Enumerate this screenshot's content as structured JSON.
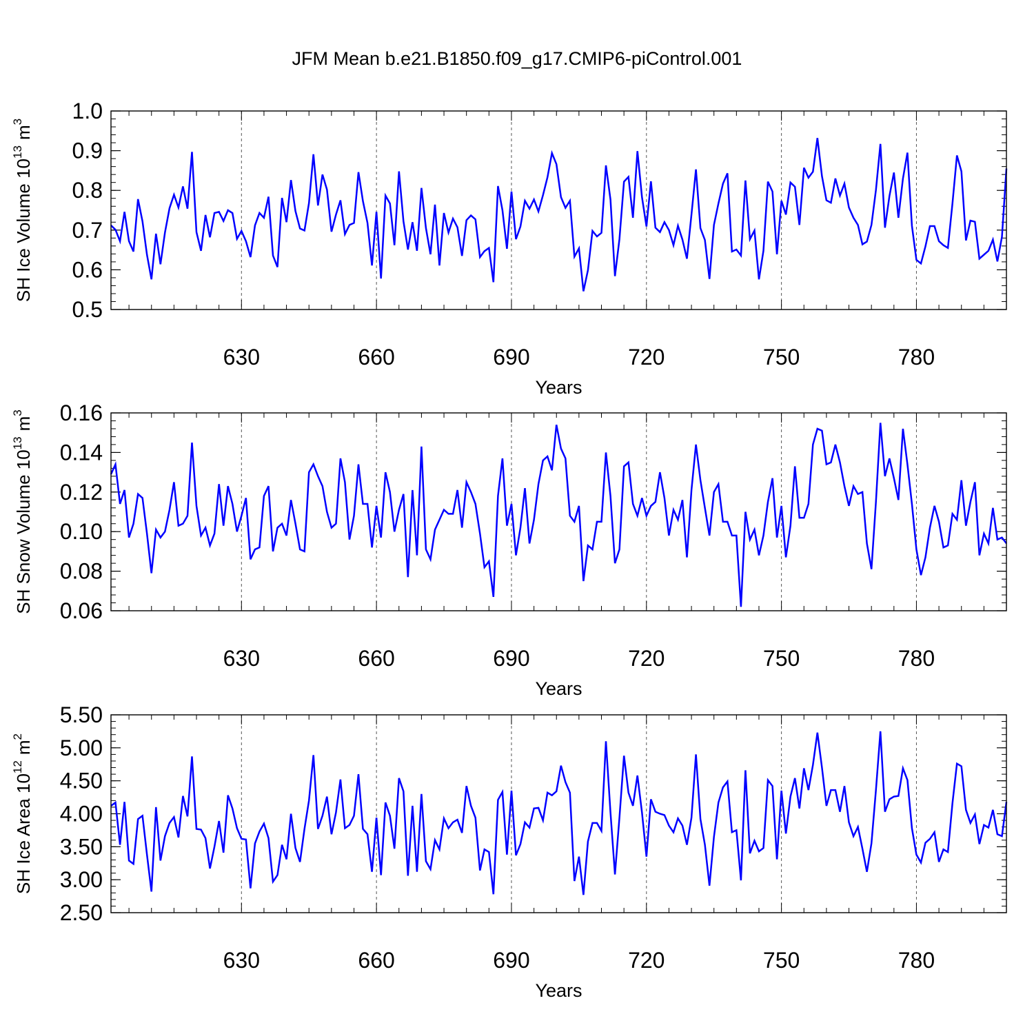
{
  "title": "JFM Mean b.e21.B1850.f09_g17.CMIP6-piControl.001",
  "colors": {
    "line": "#0000ff",
    "axis": "#000000",
    "grid": "#555555"
  },
  "chart_data": [
    {
      "type": "line",
      "title": "JFM Mean b.e21.B1850.f09_g17.CMIP6-piControl.001",
      "xlabel": "Years",
      "ylabel": "SH Ice Volume 10^13 m^3",
      "ylabel_base": "SH Ice Volume 10",
      "ylabel_exp": "13",
      "ylabel_unit": "m",
      "ylabel_unit_exp": "3",
      "xlim": [
        601,
        800
      ],
      "ylim": [
        0.5,
        1.0
      ],
      "xticks": [
        630,
        660,
        690,
        720,
        750,
        780
      ],
      "xtick_labels": [
        "630",
        "660",
        "690",
        "720",
        "750",
        "780"
      ],
      "yticks": [
        0.5,
        0.6,
        0.7,
        0.8,
        0.9,
        1.0
      ],
      "ytick_labels": [
        "0.5",
        "0.6",
        "0.7",
        "0.8",
        "0.9",
        "1.0"
      ],
      "grid": "dashed vertical at x ticks",
      "x_start": 601,
      "series": [
        {
          "values": [
            0.712,
            0.701,
            0.672,
            0.746,
            0.672,
            0.646,
            0.778,
            0.722,
            0.638,
            0.576,
            0.691,
            0.614,
            0.694,
            0.755,
            0.789,
            0.757,
            0.81,
            0.754,
            0.897,
            0.695,
            0.648,
            0.738,
            0.682,
            0.743,
            0.746,
            0.723,
            0.75,
            0.743,
            0.678,
            0.698,
            0.672,
            0.632,
            0.712,
            0.743,
            0.731,
            0.784,
            0.636,
            0.607,
            0.781,
            0.72,
            0.826,
            0.748,
            0.704,
            0.699,
            0.768,
            0.891,
            0.762,
            0.84,
            0.802,
            0.696,
            0.739,
            0.775,
            0.69,
            0.713,
            0.718,
            0.846,
            0.773,
            0.718,
            0.611,
            0.746,
            0.578,
            0.787,
            0.767,
            0.662,
            0.848,
            0.722,
            0.651,
            0.72,
            0.648,
            0.806,
            0.705,
            0.639,
            0.764,
            0.611,
            0.743,
            0.694,
            0.729,
            0.707,
            0.635,
            0.725,
            0.737,
            0.727,
            0.632,
            0.647,
            0.655,
            0.569,
            0.811,
            0.75,
            0.653,
            0.797,
            0.677,
            0.709,
            0.774,
            0.754,
            0.777,
            0.747,
            0.788,
            0.833,
            0.894,
            0.866,
            0.783,
            0.756,
            0.774,
            0.633,
            0.654,
            0.546,
            0.599,
            0.698,
            0.684,
            0.693,
            0.863,
            0.777,
            0.584,
            0.677,
            0.822,
            0.834,
            0.731,
            0.899,
            0.783,
            0.709,
            0.823,
            0.706,
            0.695,
            0.72,
            0.7,
            0.662,
            0.711,
            0.676,
            0.628,
            0.739,
            0.853,
            0.705,
            0.675,
            0.577,
            0.713,
            0.767,
            0.817,
            0.843,
            0.646,
            0.651,
            0.636,
            0.825,
            0.677,
            0.699,
            0.576,
            0.648,
            0.822,
            0.797,
            0.639,
            0.774,
            0.739,
            0.82,
            0.809,
            0.713,
            0.857,
            0.832,
            0.847,
            0.932,
            0.836,
            0.775,
            0.769,
            0.83,
            0.787,
            0.817,
            0.757,
            0.731,
            0.713,
            0.664,
            0.671,
            0.713,
            0.801,
            0.917,
            0.706,
            0.786,
            0.845,
            0.731,
            0.83,
            0.895,
            0.711,
            0.625,
            0.616,
            0.659,
            0.71,
            0.71,
            0.672,
            0.662,
            0.655,
            0.767,
            0.888,
            0.848,
            0.674,
            0.724,
            0.721,
            0.628,
            0.638,
            0.648,
            0.676,
            0.621,
            0.683,
            0.855
          ]
        }
      ]
    },
    {
      "type": "line",
      "xlabel": "Years",
      "ylabel": "SH Snow Volume 10^13 m^3",
      "ylabel_base": "SH Snow Volume 10",
      "ylabel_exp": "13",
      "ylabel_unit": "m",
      "ylabel_unit_exp": "3",
      "xlim": [
        601,
        800
      ],
      "ylim": [
        0.06,
        0.16
      ],
      "xticks": [
        630,
        660,
        690,
        720,
        750,
        780
      ],
      "xtick_labels": [
        "630",
        "660",
        "690",
        "720",
        "750",
        "780"
      ],
      "yticks": [
        0.06,
        0.08,
        0.1,
        0.12,
        0.14,
        0.16
      ],
      "ytick_labels": [
        "0.06",
        "0.08",
        "0.10",
        "0.12",
        "0.14",
        "0.16"
      ],
      "grid": "dashed vertical at x ticks",
      "x_start": 601,
      "series": [
        {
          "values": [
            0.129,
            0.134,
            0.114,
            0.121,
            0.097,
            0.104,
            0.119,
            0.117,
            0.099,
            0.079,
            0.101,
            0.097,
            0.1,
            0.111,
            0.125,
            0.103,
            0.104,
            0.108,
            0.145,
            0.113,
            0.098,
            0.102,
            0.093,
            0.099,
            0.124,
            0.103,
            0.123,
            0.114,
            0.1,
            0.108,
            0.117,
            0.086,
            0.091,
            0.092,
            0.118,
            0.123,
            0.09,
            0.102,
            0.104,
            0.098,
            0.116,
            0.104,
            0.091,
            0.09,
            0.13,
            0.134,
            0.128,
            0.123,
            0.11,
            0.102,
            0.104,
            0.137,
            0.125,
            0.096,
            0.108,
            0.134,
            0.114,
            0.114,
            0.092,
            0.113,
            0.097,
            0.13,
            0.12,
            0.1,
            0.111,
            0.119,
            0.077,
            0.121,
            0.088,
            0.143,
            0.091,
            0.086,
            0.101,
            0.106,
            0.111,
            0.109,
            0.109,
            0.121,
            0.102,
            0.125,
            0.12,
            0.114,
            0.099,
            0.082,
            0.085,
            0.067,
            0.118,
            0.137,
            0.103,
            0.114,
            0.088,
            0.102,
            0.122,
            0.094,
            0.106,
            0.124,
            0.136,
            0.138,
            0.131,
            0.154,
            0.142,
            0.137,
            0.108,
            0.105,
            0.113,
            0.075,
            0.093,
            0.091,
            0.105,
            0.105,
            0.14,
            0.118,
            0.084,
            0.091,
            0.133,
            0.135,
            0.114,
            0.108,
            0.117,
            0.108,
            0.113,
            0.115,
            0.13,
            0.117,
            0.098,
            0.111,
            0.106,
            0.116,
            0.087,
            0.121,
            0.144,
            0.126,
            0.112,
            0.098,
            0.12,
            0.124,
            0.105,
            0.105,
            0.098,
            0.098,
            0.062,
            0.11,
            0.096,
            0.101,
            0.088,
            0.098,
            0.115,
            0.127,
            0.097,
            0.113,
            0.087,
            0.103,
            0.133,
            0.107,
            0.107,
            0.114,
            0.144,
            0.152,
            0.151,
            0.134,
            0.135,
            0.144,
            0.135,
            0.123,
            0.113,
            0.123,
            0.119,
            0.12,
            0.094,
            0.081,
            0.115,
            0.155,
            0.128,
            0.137,
            0.127,
            0.116,
            0.152,
            0.134,
            0.114,
            0.091,
            0.078,
            0.087,
            0.102,
            0.113,
            0.105,
            0.092,
            0.093,
            0.109,
            0.106,
            0.126,
            0.103,
            0.115,
            0.125,
            0.088,
            0.099,
            0.094,
            0.112,
            0.096,
            0.097,
            0.094
          ]
        }
      ]
    },
    {
      "type": "line",
      "xlabel": "Years",
      "ylabel": "SH Ice Area 10^12 m^2",
      "ylabel_base": "SH Ice Area 10",
      "ylabel_exp": "12",
      "ylabel_unit": "m",
      "ylabel_unit_exp": "2",
      "xlim": [
        601,
        800
      ],
      "ylim": [
        2.5,
        5.5
      ],
      "xticks": [
        630,
        660,
        690,
        720,
        750,
        780
      ],
      "xtick_labels": [
        "630",
        "660",
        "690",
        "720",
        "750",
        "780"
      ],
      "yticks": [
        2.5,
        3.0,
        3.5,
        4.0,
        4.5,
        5.0,
        5.5
      ],
      "ytick_labels": [
        "2.50",
        "3.00",
        "3.50",
        "4.00",
        "4.50",
        "5.00",
        "5.50"
      ],
      "grid": "dashed vertical at x ticks",
      "x_start": 601,
      "series": [
        {
          "values": [
            4.12,
            4.17,
            3.53,
            4.18,
            3.29,
            3.24,
            3.92,
            3.97,
            3.38,
            2.82,
            4.1,
            3.29,
            3.66,
            3.86,
            3.95,
            3.64,
            4.27,
            3.96,
            4.87,
            3.77,
            3.76,
            3.63,
            3.17,
            3.5,
            3.89,
            3.41,
            4.28,
            4.08,
            3.78,
            3.62,
            3.61,
            2.87,
            3.55,
            3.73,
            3.85,
            3.63,
            2.97,
            3.07,
            3.53,
            3.31,
            4.0,
            3.48,
            3.27,
            3.77,
            4.2,
            4.89,
            3.77,
            3.97,
            4.26,
            3.69,
            4.02,
            4.52,
            3.78,
            3.83,
            3.97,
            4.6,
            3.77,
            3.69,
            3.12,
            3.94,
            3.07,
            4.17,
            3.97,
            3.47,
            4.54,
            4.34,
            3.06,
            4.12,
            3.12,
            4.3,
            3.28,
            3.16,
            3.6,
            3.46,
            3.93,
            3.78,
            3.87,
            3.91,
            3.71,
            4.42,
            4.12,
            3.94,
            3.14,
            3.46,
            3.42,
            2.78,
            4.21,
            4.33,
            3.38,
            4.35,
            3.37,
            3.54,
            3.87,
            3.79,
            4.08,
            4.09,
            3.9,
            4.32,
            4.28,
            4.34,
            4.73,
            4.48,
            4.32,
            2.98,
            3.35,
            2.77,
            3.58,
            3.86,
            3.86,
            3.74,
            5.1,
            4.02,
            3.08,
            3.94,
            4.88,
            4.32,
            4.12,
            4.58,
            4.02,
            3.35,
            4.22,
            4.03,
            4.0,
            3.98,
            3.82,
            3.72,
            3.93,
            3.82,
            3.53,
            3.94,
            4.9,
            3.92,
            3.53,
            2.91,
            3.65,
            4.17,
            4.4,
            4.49,
            3.72,
            3.75,
            2.99,
            4.66,
            3.4,
            3.59,
            3.43,
            3.48,
            4.51,
            4.42,
            3.31,
            4.35,
            3.7,
            4.26,
            4.54,
            4.08,
            4.69,
            4.36,
            4.74,
            5.23,
            4.7,
            4.12,
            4.36,
            4.36,
            4.03,
            4.42,
            3.87,
            3.66,
            3.8,
            3.47,
            3.12,
            3.55,
            4.36,
            5.25,
            4.03,
            4.22,
            4.26,
            4.27,
            4.69,
            4.51,
            3.78,
            3.38,
            3.26,
            3.56,
            3.62,
            3.72,
            3.27,
            3.46,
            3.42,
            4.16,
            4.76,
            4.72,
            4.06,
            3.86,
            3.99,
            3.54,
            3.83,
            3.79,
            4.06,
            3.69,
            3.66,
            4.18
          ]
        }
      ]
    }
  ]
}
